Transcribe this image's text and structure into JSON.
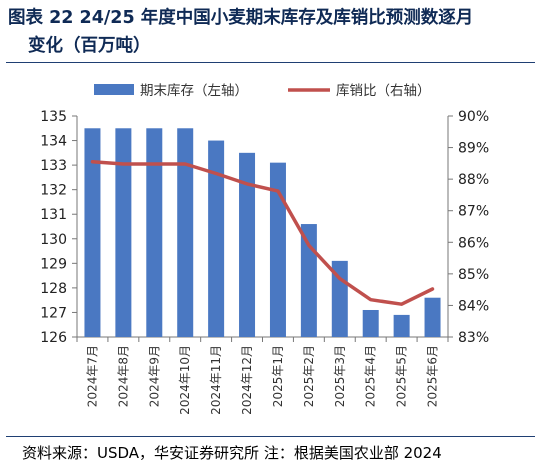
{
  "header": {
    "title_line1": "图表 22 24/25 年度中国小麦期末库存及库销比预测数逐月",
    "title_line2": "变化（百万吨）"
  },
  "footer": {
    "source": "资料来源：USDA，华安证券研究所 注：根据美国农业部 2024"
  },
  "chart_data": {
    "type": "bar",
    "categories": [
      "2024年7月",
      "2024年8月",
      "2024年9月",
      "2024年10月",
      "2024年11月",
      "2024年12月",
      "2025年1月",
      "2025年2月",
      "2025年3月",
      "2025年4月",
      "2025年5月",
      "2025年6月"
    ],
    "series": [
      {
        "name": "期末库存（左轴）",
        "type": "bar",
        "axis": "left",
        "values": [
          134.5,
          134.5,
          134.5,
          134.5,
          134.0,
          133.5,
          133.1,
          130.6,
          129.1,
          127.1,
          126.9,
          127.6
        ],
        "color": "#4a78c2"
      },
      {
        "name": "库销比（右轴）",
        "type": "line",
        "axis": "right",
        "values": [
          88.55,
          88.48,
          88.48,
          88.48,
          88.18,
          87.85,
          87.62,
          85.9,
          84.85,
          84.18,
          84.04,
          84.52
        ],
        "color": "#c0504d"
      }
    ],
    "y_left": {
      "min": 126,
      "max": 135,
      "ticks": [
        "126",
        "127",
        "128",
        "129",
        "130",
        "131",
        "132",
        "133",
        "134",
        "135"
      ]
    },
    "y_right": {
      "min": 83,
      "max": 90,
      "ticks": [
        "83%",
        "84%",
        "85%",
        "86%",
        "87%",
        "88%",
        "89%",
        "90%"
      ]
    },
    "grid": false,
    "legend_position": "top"
  }
}
